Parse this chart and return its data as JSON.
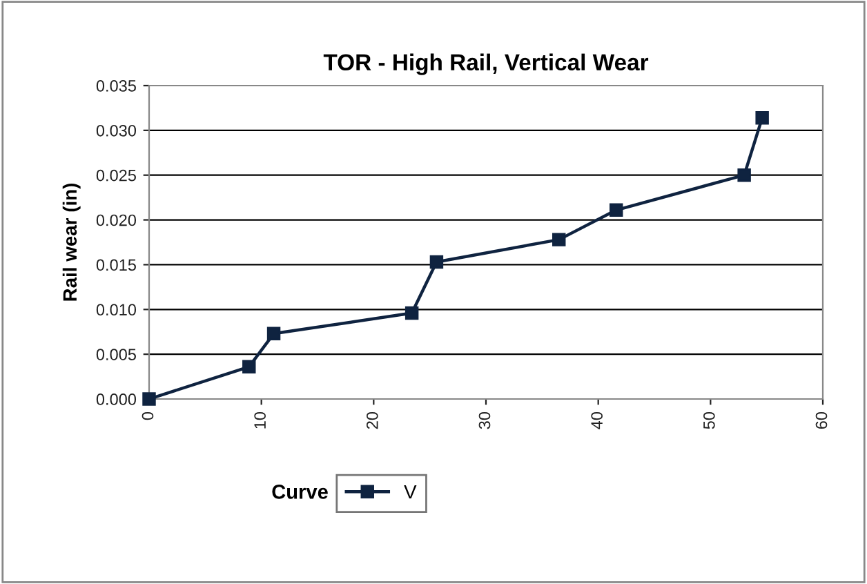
{
  "chart_data": {
    "type": "line",
    "title": "TOR - High Rail, Vertical Wear",
    "ylabel": "Rail wear (in)",
    "legend_title": "Curve",
    "x": [
      0,
      8.9,
      11.1,
      23.4,
      25.6,
      36.5,
      41.6,
      53.0,
      54.6
    ],
    "series": [
      {
        "name": "V",
        "color": "#0f2340",
        "values": [
          0.0,
          0.0036,
          0.0073,
          0.0096,
          0.0153,
          0.0178,
          0.0211,
          0.025,
          0.0314
        ]
      }
    ],
    "xlim": [
      0,
      60
    ],
    "xticks": [
      0,
      10,
      20,
      30,
      40,
      50,
      60
    ],
    "ylim": [
      0,
      0.035
    ],
    "yticks": [
      {
        "value": 0,
        "label": "0.000"
      },
      {
        "value": 0.005,
        "label": "0.005"
      },
      {
        "value": 0.01,
        "label": "0.010"
      },
      {
        "value": 0.015,
        "label": "0.015"
      },
      {
        "value": 0.02,
        "label": "0.020"
      },
      {
        "value": 0.025,
        "label": "0.025"
      },
      {
        "value": 0.03,
        "label": "0.030"
      },
      {
        "value": 0.035,
        "label": "0.035"
      }
    ],
    "grid": "y",
    "legend": "bottom",
    "marker": "square",
    "line_style": "solid"
  }
}
